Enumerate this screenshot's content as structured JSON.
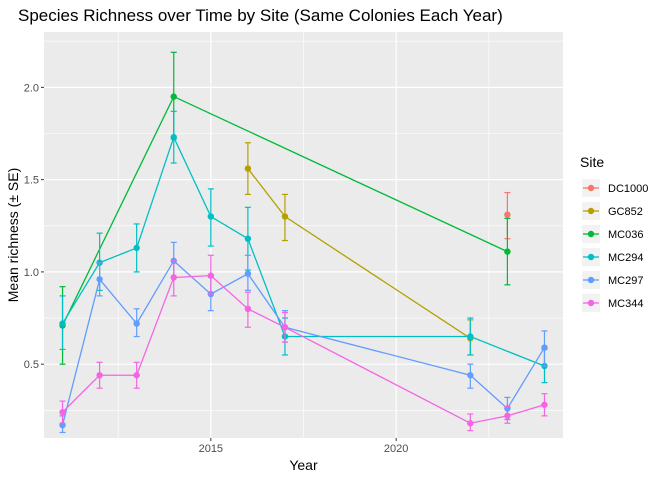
{
  "chart_data": {
    "type": "line",
    "title": "Species Richness over Time by Site (Same Colonies Each Year)",
    "xlabel": "Year",
    "ylabel": "Mean richness (± SE)",
    "xlim": [
      2010.5,
      2024.5
    ],
    "ylim": [
      0.1,
      2.3
    ],
    "x_ticks": [
      2015,
      2020
    ],
    "x_tick_labels": [
      "2015",
      "2020"
    ],
    "y_ticks": [
      0.5,
      1.0,
      1.5,
      2.0
    ],
    "y_tick_labels": [
      "0.5",
      "1.0",
      "1.5",
      "2.0"
    ],
    "grid": true,
    "background": "#ebebeb",
    "legend": {
      "title": "Site",
      "placement": "right"
    },
    "series": [
      {
        "name": "DC1000",
        "color": "#f8766d",
        "points": [
          {
            "x": 2023,
            "y": 1.31,
            "lo": 1.18,
            "hi": 1.43
          }
        ]
      },
      {
        "name": "GC852",
        "color": "#b79f00",
        "points": [
          {
            "x": 2016,
            "y": 1.56,
            "lo": 1.42,
            "hi": 1.7
          },
          {
            "x": 2017,
            "y": 1.3,
            "lo": 1.17,
            "hi": 1.42
          },
          {
            "x": 2022,
            "y": 0.64,
            "lo": 0.55,
            "hi": 0.74
          }
        ]
      },
      {
        "name": "MC036",
        "color": "#00ba38",
        "points": [
          {
            "x": 2011,
            "y": 0.71,
            "lo": 0.5,
            "hi": 0.92
          },
          {
            "x": 2014,
            "y": 1.95,
            "lo": 1.72,
            "hi": 2.19
          },
          {
            "x": 2023,
            "y": 1.11,
            "lo": 0.93,
            "hi": 1.29
          }
        ]
      },
      {
        "name": "MC294",
        "color": "#00bfc4",
        "points": [
          {
            "x": 2011,
            "y": 0.72,
            "lo": 0.58,
            "hi": 0.87
          },
          {
            "x": 2012,
            "y": 1.05,
            "lo": 0.9,
            "hi": 1.21
          },
          {
            "x": 2013,
            "y": 1.13,
            "lo": 1.0,
            "hi": 1.26
          },
          {
            "x": 2014,
            "y": 1.73,
            "lo": 1.59,
            "hi": 1.87
          },
          {
            "x": 2015,
            "y": 1.3,
            "lo": 1.14,
            "hi": 1.45
          },
          {
            "x": 2016,
            "y": 1.18,
            "lo": 1.01,
            "hi": 1.35
          },
          {
            "x": 2017,
            "y": 0.65,
            "lo": 0.55,
            "hi": 0.75
          },
          {
            "x": 2022,
            "y": 0.65,
            "lo": 0.55,
            "hi": 0.75
          },
          {
            "x": 2024,
            "y": 0.49,
            "lo": 0.4,
            "hi": 0.58
          }
        ]
      },
      {
        "name": "MC297",
        "color": "#619cff",
        "points": [
          {
            "x": 2011,
            "y": 0.17,
            "lo": 0.13,
            "hi": 0.22
          },
          {
            "x": 2012,
            "y": 0.96,
            "lo": 0.87,
            "hi": 1.05
          },
          {
            "x": 2013,
            "y": 0.72,
            "lo": 0.65,
            "hi": 0.8
          },
          {
            "x": 2014,
            "y": 1.06,
            "lo": 0.97,
            "hi": 1.16
          },
          {
            "x": 2015,
            "y": 0.88,
            "lo": 0.79,
            "hi": 0.97
          },
          {
            "x": 2016,
            "y": 0.99,
            "lo": 0.9,
            "hi": 1.09
          },
          {
            "x": 2017,
            "y": 0.7,
            "lo": 0.62,
            "hi": 0.79
          },
          {
            "x": 2022,
            "y": 0.44,
            "lo": 0.37,
            "hi": 0.5
          },
          {
            "x": 2023,
            "y": 0.26,
            "lo": 0.2,
            "hi": 0.32
          },
          {
            "x": 2024,
            "y": 0.59,
            "lo": 0.49,
            "hi": 0.68
          }
        ]
      },
      {
        "name": "MC344",
        "color": "#f564e3",
        "points": [
          {
            "x": 2011,
            "y": 0.24,
            "lo": 0.18,
            "hi": 0.3
          },
          {
            "x": 2012,
            "y": 0.44,
            "lo": 0.37,
            "hi": 0.51
          },
          {
            "x": 2013,
            "y": 0.44,
            "lo": 0.37,
            "hi": 0.51
          },
          {
            "x": 2014,
            "y": 0.97,
            "lo": 0.87,
            "hi": 1.06
          },
          {
            "x": 2015,
            "y": 0.98,
            "lo": 0.88,
            "hi": 1.09
          },
          {
            "x": 2016,
            "y": 0.8,
            "lo": 0.7,
            "hi": 0.89
          },
          {
            "x": 2017,
            "y": 0.7,
            "lo": 0.62,
            "hi": 0.78
          },
          {
            "x": 2022,
            "y": 0.18,
            "lo": 0.14,
            "hi": 0.23
          },
          {
            "x": 2023,
            "y": 0.22,
            "lo": 0.18,
            "hi": 0.27
          },
          {
            "x": 2024,
            "y": 0.28,
            "lo": 0.22,
            "hi": 0.34
          }
        ]
      }
    ]
  }
}
